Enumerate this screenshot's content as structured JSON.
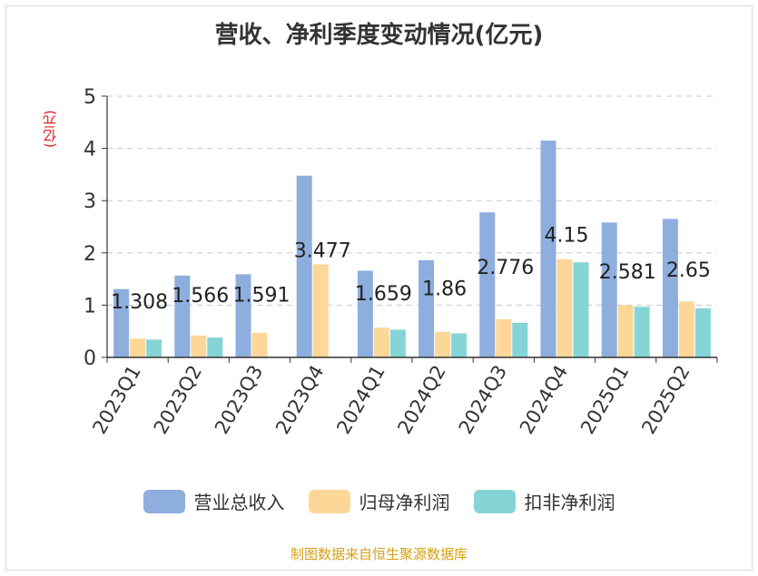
{
  "chart_data": {
    "type": "bar",
    "title": "营收、净利季度变动情况(亿元)",
    "ylabel": "(亿元)",
    "ylim": [
      0,
      5
    ],
    "yticks": [
      "0",
      "1",
      "2",
      "3",
      "4",
      "5"
    ],
    "categories": [
      "2023Q1",
      "2023Q2",
      "2023Q3",
      "2023Q4",
      "2024Q1",
      "2024Q2",
      "2024Q3",
      "2024Q4",
      "2025Q1",
      "2025Q2"
    ],
    "series": [
      {
        "name": "营业总收入",
        "color": "#8eaedd",
        "values": [
          1.308,
          1.566,
          1.591,
          3.477,
          1.659,
          1.86,
          2.776,
          4.15,
          2.581,
          2.65
        ],
        "labels": [
          "1.308",
          "1.566",
          "1.591",
          "3.477",
          "1.659",
          "1.86",
          "2.776",
          "4.15",
          "2.581",
          "2.65"
        ]
      },
      {
        "name": "归母净利润",
        "color": "#fdd797",
        "values": [
          0.36,
          0.42,
          0.47,
          1.78,
          0.57,
          0.49,
          0.73,
          1.88,
          1.0,
          1.07
        ]
      },
      {
        "name": "扣非净利润",
        "color": "#86d5d6",
        "values": [
          0.34,
          0.38,
          null,
          null,
          0.53,
          0.46,
          0.66,
          1.82,
          0.97,
          0.94
        ]
      }
    ],
    "grid": true,
    "legend": "bottom"
  },
  "footer": "制图数据来自恒生聚源数据库"
}
